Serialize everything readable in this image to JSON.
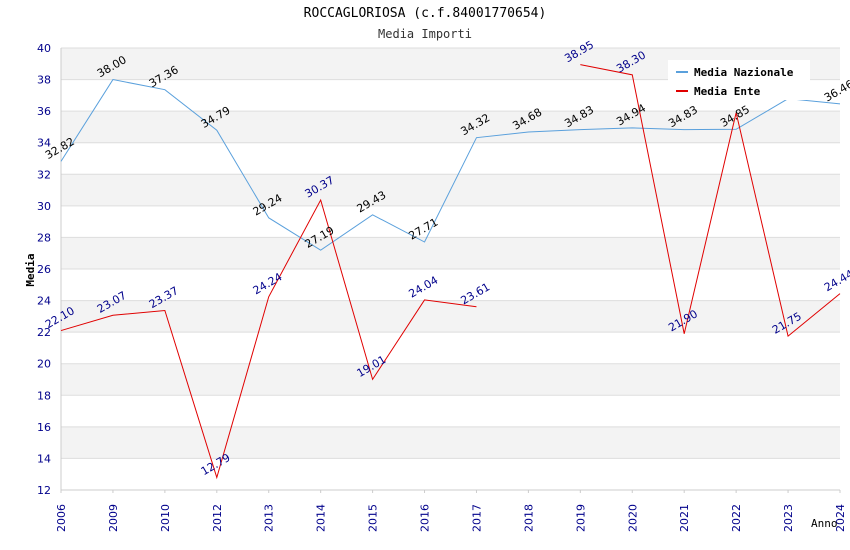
{
  "chart_data": {
    "type": "line",
    "title": "ROCCAGLORIOSA (c.f.84001770654)",
    "subtitle": "Media Importi",
    "xlabel": "Anno",
    "ylabel": "Media",
    "ylim": [
      12,
      40
    ],
    "yticks": [
      12,
      14,
      16,
      18,
      20,
      22,
      24,
      26,
      28,
      30,
      32,
      34,
      36,
      38,
      40
    ],
    "categories": [
      "2006",
      "2009",
      "2010",
      "2012",
      "2013",
      "2014",
      "2015",
      "2016",
      "2017",
      "2018",
      "2019",
      "2020",
      "2021",
      "2022",
      "2023",
      "2024"
    ],
    "grid": true,
    "legend_position": "top-right",
    "series": [
      {
        "name": "Media Nazionale",
        "color": "#5aa0dc",
        "values": [
          32.82,
          38.0,
          37.36,
          34.79,
          29.24,
          27.19,
          29.43,
          27.71,
          34.32,
          34.68,
          34.83,
          34.94,
          34.83,
          34.85,
          36.79,
          36.46
        ],
        "labels": [
          "32.82",
          "38.00",
          "37.36",
          "34.79",
          "29.24",
          "27.19",
          "29.43",
          "27.71",
          "34.32",
          "34.68",
          "34.83",
          "34.94",
          "34.83",
          "34.85",
          "",
          "36.46"
        ]
      },
      {
        "name": "Media Ente",
        "color": "#e00000",
        "values": [
          22.1,
          23.07,
          23.37,
          12.79,
          24.24,
          30.37,
          19.01,
          24.04,
          23.61,
          null,
          38.95,
          38.3,
          21.9,
          35.9,
          21.75,
          24.44
        ],
        "labels": [
          "22.10",
          "23.07",
          "23.37",
          "12.79",
          "24.24",
          "30.37",
          "19.01",
          "24.04",
          "23.61",
          "",
          "38.95",
          "38.30",
          "21.90",
          "",
          "21.75",
          "24.44"
        ]
      }
    ]
  }
}
